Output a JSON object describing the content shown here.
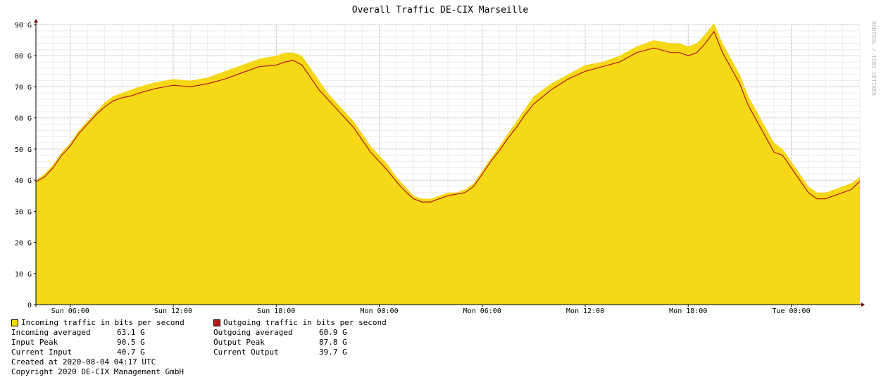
{
  "chart_data": {
    "type": "area",
    "title": "Overall Traffic DE-CIX Marseille",
    "watermark": "RRDTOOL / TOBI OETIKER",
    "y_ticks": [
      "0",
      "10 G",
      "20 G",
      "30 G",
      "40 G",
      "50 G",
      "60 G",
      "70 G",
      "80 G",
      "90 G"
    ],
    "x_ticks": [
      "Sun 06:00",
      "Sun 12:00",
      "Sun 18:00",
      "Mon 00:00",
      "Mon 06:00",
      "Mon 12:00",
      "Mon 18:00",
      "Tue 00:00"
    ],
    "ylim": [
      0,
      90
    ],
    "x_hours_span": [
      4.0,
      52.0
    ],
    "x_tick_hours": [
      6,
      12,
      18,
      24,
      30,
      36,
      42,
      48
    ],
    "grid": true,
    "series": [
      {
        "name": "Incoming traffic in bits per second",
        "color": "#f5d816",
        "style": "area",
        "x": [
          4.0,
          4.5,
          5.0,
          5.5,
          6.0,
          6.5,
          7.0,
          7.5,
          8.0,
          8.5,
          9.0,
          9.5,
          10.0,
          11.0,
          12.0,
          13.0,
          14.0,
          15.0,
          16.0,
          17.0,
          18.0,
          18.5,
          19.0,
          19.5,
          20.0,
          20.5,
          21.0,
          21.5,
          22.0,
          22.5,
          23.0,
          23.5,
          24.0,
          24.5,
          25.0,
          25.5,
          26.0,
          26.5,
          27.0,
          27.5,
          28.0,
          28.5,
          29.0,
          29.5,
          30.0,
          30.5,
          31.0,
          31.5,
          32.0,
          32.5,
          33.0,
          34.0,
          35.0,
          36.0,
          37.0,
          38.0,
          39.0,
          40.0,
          41.0,
          41.5,
          42.0,
          42.5,
          43.0,
          43.5,
          44.0,
          44.5,
          45.0,
          45.5,
          46.0,
          46.5,
          47.0,
          47.5,
          48.0,
          48.5,
          49.0,
          49.5,
          50.0,
          50.5,
          51.0,
          51.5,
          52.0
        ],
        "values": [
          40,
          42,
          45,
          49,
          52,
          56,
          59,
          62,
          65,
          67,
          68,
          69,
          70,
          71.5,
          72.5,
          72,
          73,
          75,
          77,
          79,
          80,
          81,
          81,
          80,
          76,
          72,
          68,
          65,
          62,
          59,
          55,
          51,
          48,
          45,
          41,
          38,
          35,
          34,
          34,
          35,
          36,
          36,
          37,
          39,
          43,
          47,
          51,
          55,
          59,
          63,
          67,
          71,
          74,
          77,
          78,
          80,
          83,
          85,
          84,
          84,
          83,
          84,
          87,
          90.5,
          84,
          79,
          74,
          67,
          62,
          57,
          52,
          50,
          46,
          42,
          38,
          36,
          36,
          37,
          38,
          39,
          41
        ]
      },
      {
        "name": "Outgoing traffic in bits per second",
        "color": "#b41a1a",
        "style": "line",
        "x": [
          4.0,
          4.5,
          5.0,
          5.5,
          6.0,
          6.5,
          7.0,
          7.5,
          8.0,
          8.5,
          9.0,
          9.5,
          10.0,
          11.0,
          12.0,
          13.0,
          14.0,
          15.0,
          16.0,
          17.0,
          18.0,
          18.5,
          19.0,
          19.5,
          20.0,
          20.5,
          21.0,
          21.5,
          22.0,
          22.5,
          23.0,
          23.5,
          24.0,
          24.5,
          25.0,
          25.5,
          26.0,
          26.5,
          27.0,
          27.5,
          28.0,
          28.5,
          29.0,
          29.5,
          30.0,
          30.5,
          31.0,
          31.5,
          32.0,
          32.5,
          33.0,
          34.0,
          35.0,
          36.0,
          37.0,
          38.0,
          39.0,
          40.0,
          41.0,
          41.5,
          42.0,
          42.5,
          43.0,
          43.5,
          44.0,
          44.5,
          45.0,
          45.5,
          46.0,
          46.5,
          47.0,
          47.5,
          48.0,
          48.5,
          49.0,
          49.5,
          50.0,
          50.5,
          51.0,
          51.5,
          52.0
        ],
        "values": [
          39.5,
          41,
          44,
          48,
          51,
          55,
          58,
          61,
          63.5,
          65.5,
          66.5,
          67,
          68,
          69.5,
          70.5,
          70,
          71,
          72.5,
          74.5,
          76.5,
          77,
          78,
          78.5,
          77,
          73,
          69,
          66,
          63,
          60,
          57,
          53,
          49,
          46,
          43,
          39.5,
          36.5,
          34,
          33,
          33,
          34,
          35,
          35.5,
          36,
          38,
          42,
          46,
          49.5,
          53.5,
          57,
          61,
          64.5,
          69,
          72.5,
          75,
          76.5,
          78,
          81,
          82.5,
          81,
          81,
          80,
          81,
          84,
          87.8,
          81,
          76,
          71,
          64,
          59,
          54,
          49,
          48,
          44,
          40,
          36,
          34,
          34,
          35,
          36,
          37,
          39.7
        ]
      }
    ]
  },
  "legend": {
    "in_label": "Incoming traffic in bits per second",
    "out_label": "Outgoing traffic in bits per second",
    "in_color": "#f5d816",
    "out_color": "#b41a1a",
    "rows": [
      {
        "in_label": "Incoming averaged",
        "in_value": "63.1 G",
        "out_label": "Outgoing averaged",
        "out_value": "60.9 G"
      },
      {
        "in_label": "Input Peak",
        "in_value": "90.5 G",
        "out_label": "Output Peak",
        "out_value": "87.8 G"
      },
      {
        "in_label": "Current Input",
        "in_value": "40.7 G",
        "out_label": "Current Output",
        "out_value": "39.7 G"
      }
    ]
  },
  "footer": {
    "created": "Created at 2020-08-04 04:17 UTC",
    "copyright": "Copyright 2020 DE-CIX Management GmbH"
  }
}
